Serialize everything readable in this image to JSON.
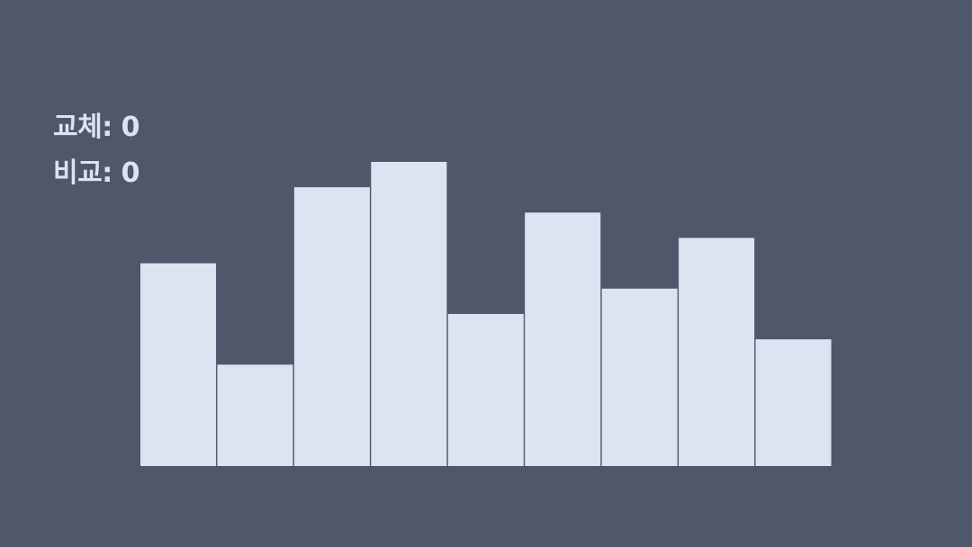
{
  "counters": {
    "swaps": {
      "label": "교체",
      "separator": ": ",
      "value": "0"
    },
    "comparisons": {
      "label": "비교",
      "separator": ": ",
      "value": "0"
    }
  },
  "colors": {
    "background": "#4f586a",
    "bar": "#dde3f0",
    "text": "#dde3f0"
  },
  "chart_data": {
    "type": "bar",
    "values": [
      8,
      4,
      11,
      12,
      6,
      10,
      7,
      9,
      5
    ],
    "ylim": [
      0,
      12
    ],
    "grid": false,
    "title": "",
    "xlabel": "",
    "ylabel": ""
  }
}
